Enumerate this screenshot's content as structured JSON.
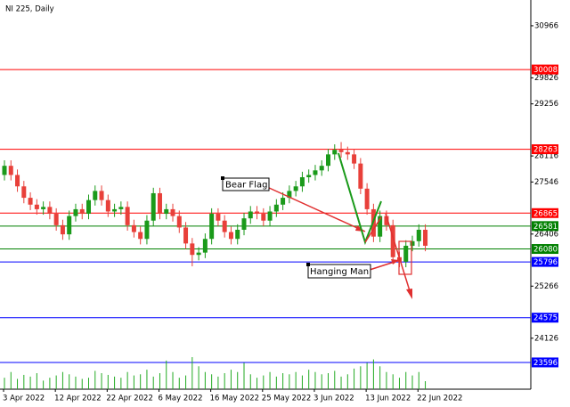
{
  "chart_data": {
    "type": "candlestick",
    "title": "NI 225, Daily",
    "categories": [
      "3 Apr 2022",
      null,
      null,
      null,
      null,
      null,
      null,
      null,
      "12 Apr 2022",
      null,
      null,
      null,
      null,
      null,
      null,
      null,
      "22 Apr 2022",
      null,
      null,
      null,
      null,
      null,
      null,
      null,
      "6 May 2022",
      null,
      null,
      null,
      null,
      null,
      null,
      null,
      "16 May 2022",
      null,
      null,
      null,
      null,
      null,
      null,
      null,
      "25 May 2022",
      null,
      null,
      null,
      null,
      null,
      null,
      null,
      "3 Jun 2022",
      null,
      null,
      null,
      null,
      null,
      null,
      null,
      "13 Jun 2022",
      null,
      null,
      null,
      null,
      null,
      null,
      null,
      "22 Jun 2022",
      null
    ],
    "open": [
      27700,
      27900,
      27700,
      27450,
      27200,
      27050,
      26950,
      27000,
      26850,
      26600,
      26400,
      26800,
      26950,
      26850,
      27150,
      27350,
      27150,
      26900,
      26950,
      27000,
      26600,
      26450,
      26300,
      26700,
      27300,
      26850,
      26950,
      26800,
      26550,
      26200,
      25950,
      26000,
      26300,
      26850,
      26700,
      26450,
      26300,
      26500,
      26750,
      26900,
      26850,
      26700,
      26900,
      27050,
      27200,
      27350,
      27450,
      27650,
      27700,
      27800,
      27900,
      28150,
      28250,
      28200,
      28150,
      27950,
      27400,
      26950,
      26350,
      26800,
      26600,
      25900,
      25800,
      26150,
      26250,
      26500
    ],
    "high": [
      28020,
      28020,
      27820,
      27570,
      27320,
      27170,
      27120,
      27120,
      26970,
      26720,
      26920,
      27070,
      27070,
      27270,
      27470,
      27470,
      27270,
      27070,
      27120,
      27120,
      26720,
      26570,
      26820,
      27420,
      27420,
      27070,
      27070,
      26920,
      26670,
      26320,
      26120,
      26420,
      26970,
      26970,
      26820,
      26570,
      26620,
      26870,
      27020,
      27020,
      26970,
      27020,
      27170,
      27320,
      27470,
      27570,
      27770,
      27820,
      27920,
      28020,
      28270,
      28370,
      28420,
      28320,
      28270,
      28070,
      27520,
      27070,
      26920,
      26920,
      26720,
      26020,
      26270,
      26370,
      26620,
      26620
    ],
    "low": [
      27580,
      27580,
      27330,
      27080,
      26930,
      26830,
      26830,
      26730,
      26480,
      26280,
      26280,
      26680,
      26730,
      26730,
      27030,
      27030,
      26780,
      26780,
      26830,
      26480,
      26330,
      26180,
      26180,
      26580,
      26730,
      26730,
      26680,
      26430,
      26080,
      25700,
      25830,
      25880,
      26180,
      26580,
      26330,
      26180,
      26180,
      26380,
      26630,
      26730,
      26580,
      26580,
      26780,
      26930,
      27080,
      27230,
      27330,
      27530,
      27580,
      27680,
      27780,
      28030,
      28080,
      28030,
      27830,
      27280,
      26830,
      26230,
      26230,
      26480,
      25780,
      25680,
      25680,
      26030,
      26130,
      26030
    ],
    "close": [
      27900,
      27700,
      27450,
      27200,
      27050,
      26950,
      27000,
      26850,
      26600,
      26400,
      26800,
      26950,
      26850,
      27150,
      27350,
      27150,
      26900,
      26950,
      27000,
      26600,
      26450,
      26300,
      26700,
      27300,
      26850,
      26950,
      26800,
      26550,
      26200,
      25950,
      26000,
      26300,
      26850,
      26700,
      26450,
      26300,
      26500,
      26750,
      26900,
      26850,
      26700,
      26900,
      27050,
      27200,
      27350,
      27450,
      27650,
      27700,
      27800,
      27900,
      28150,
      28250,
      28200,
      28150,
      27950,
      27400,
      26950,
      26350,
      26800,
      26600,
      25900,
      25800,
      26150,
      26250,
      26500,
      26150
    ],
    "volume": [
      20,
      30,
      18,
      25,
      22,
      28,
      15,
      20,
      24,
      30,
      26,
      22,
      18,
      20,
      32,
      28,
      25,
      22,
      20,
      30,
      24,
      26,
      34,
      22,
      28,
      50,
      30,
      20,
      24,
      56,
      40,
      30,
      26,
      22,
      28,
      34,
      30,
      46,
      26,
      20,
      24,
      30,
      22,
      28,
      26,
      30,
      24,
      34,
      30,
      26,
      28,
      32,
      22,
      26,
      36,
      40,
      46,
      52,
      40,
      30,
      26,
      20,
      30,
      24,
      30,
      14
    ],
    "up_color": "#1a9a1a",
    "down_color": "#e8403a",
    "volume_color": "#22aa22",
    "ylim": [
      23010,
      31530
    ],
    "yticks": [
      30966,
      29826,
      29256,
      28116,
      27546,
      26406,
      25266,
      24126
    ],
    "hlines": [
      {
        "value": 30008,
        "color": "#ff0000"
      },
      {
        "value": 28263,
        "color": "#ff0000"
      },
      {
        "value": 26865,
        "color": "#ff0000"
      },
      {
        "value": 26581,
        "color": "#008000"
      },
      {
        "value": 26080,
        "color": "#008000"
      },
      {
        "value": 25796,
        "color": "#0000ff"
      },
      {
        "value": 24575,
        "color": "#0000ff"
      },
      {
        "value": 23596,
        "color": "#0000ff"
      }
    ],
    "annotations": [
      "Bear Flag",
      "Hanging Man"
    ]
  }
}
